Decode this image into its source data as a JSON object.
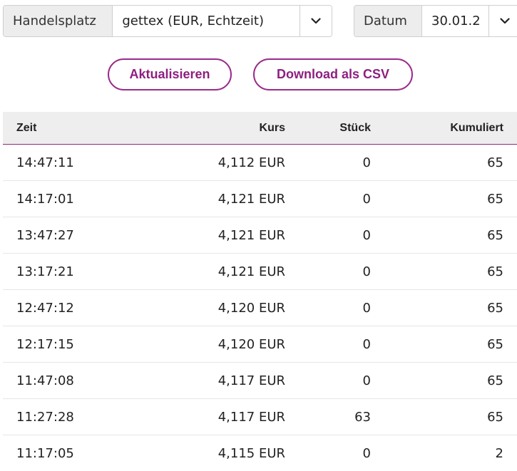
{
  "filters": {
    "market_label": "Handelsplatz",
    "market_value": "gettex (EUR, Echtzeit)",
    "date_label": "Datum",
    "date_value": "30.01.2"
  },
  "actions": {
    "refresh_label": "Aktualisieren",
    "csv_label": "Download als CSV"
  },
  "table": {
    "headers": {
      "time": "Zeit",
      "price": "Kurs",
      "qty": "Stück",
      "cumulative": "Kumuliert"
    },
    "rows": [
      {
        "time": "14:47:11",
        "price": "4,112 EUR",
        "qty": "0",
        "cumulative": "65"
      },
      {
        "time": "14:17:01",
        "price": "4,121 EUR",
        "qty": "0",
        "cumulative": "65"
      },
      {
        "time": "13:47:27",
        "price": "4,121 EUR",
        "qty": "0",
        "cumulative": "65"
      },
      {
        "time": "13:17:21",
        "price": "4,121 EUR",
        "qty": "0",
        "cumulative": "65"
      },
      {
        "time": "12:47:12",
        "price": "4,120 EUR",
        "qty": "0",
        "cumulative": "65"
      },
      {
        "time": "12:17:15",
        "price": "4,120 EUR",
        "qty": "0",
        "cumulative": "65"
      },
      {
        "time": "11:47:08",
        "price": "4,117 EUR",
        "qty": "0",
        "cumulative": "65"
      },
      {
        "time": "11:27:28",
        "price": "4,117 EUR",
        "qty": "63",
        "cumulative": "65"
      },
      {
        "time": "11:17:05",
        "price": "4,115 EUR",
        "qty": "0",
        "cumulative": "2"
      }
    ]
  },
  "icons": {
    "dropdown": "chevron-down-icon"
  }
}
